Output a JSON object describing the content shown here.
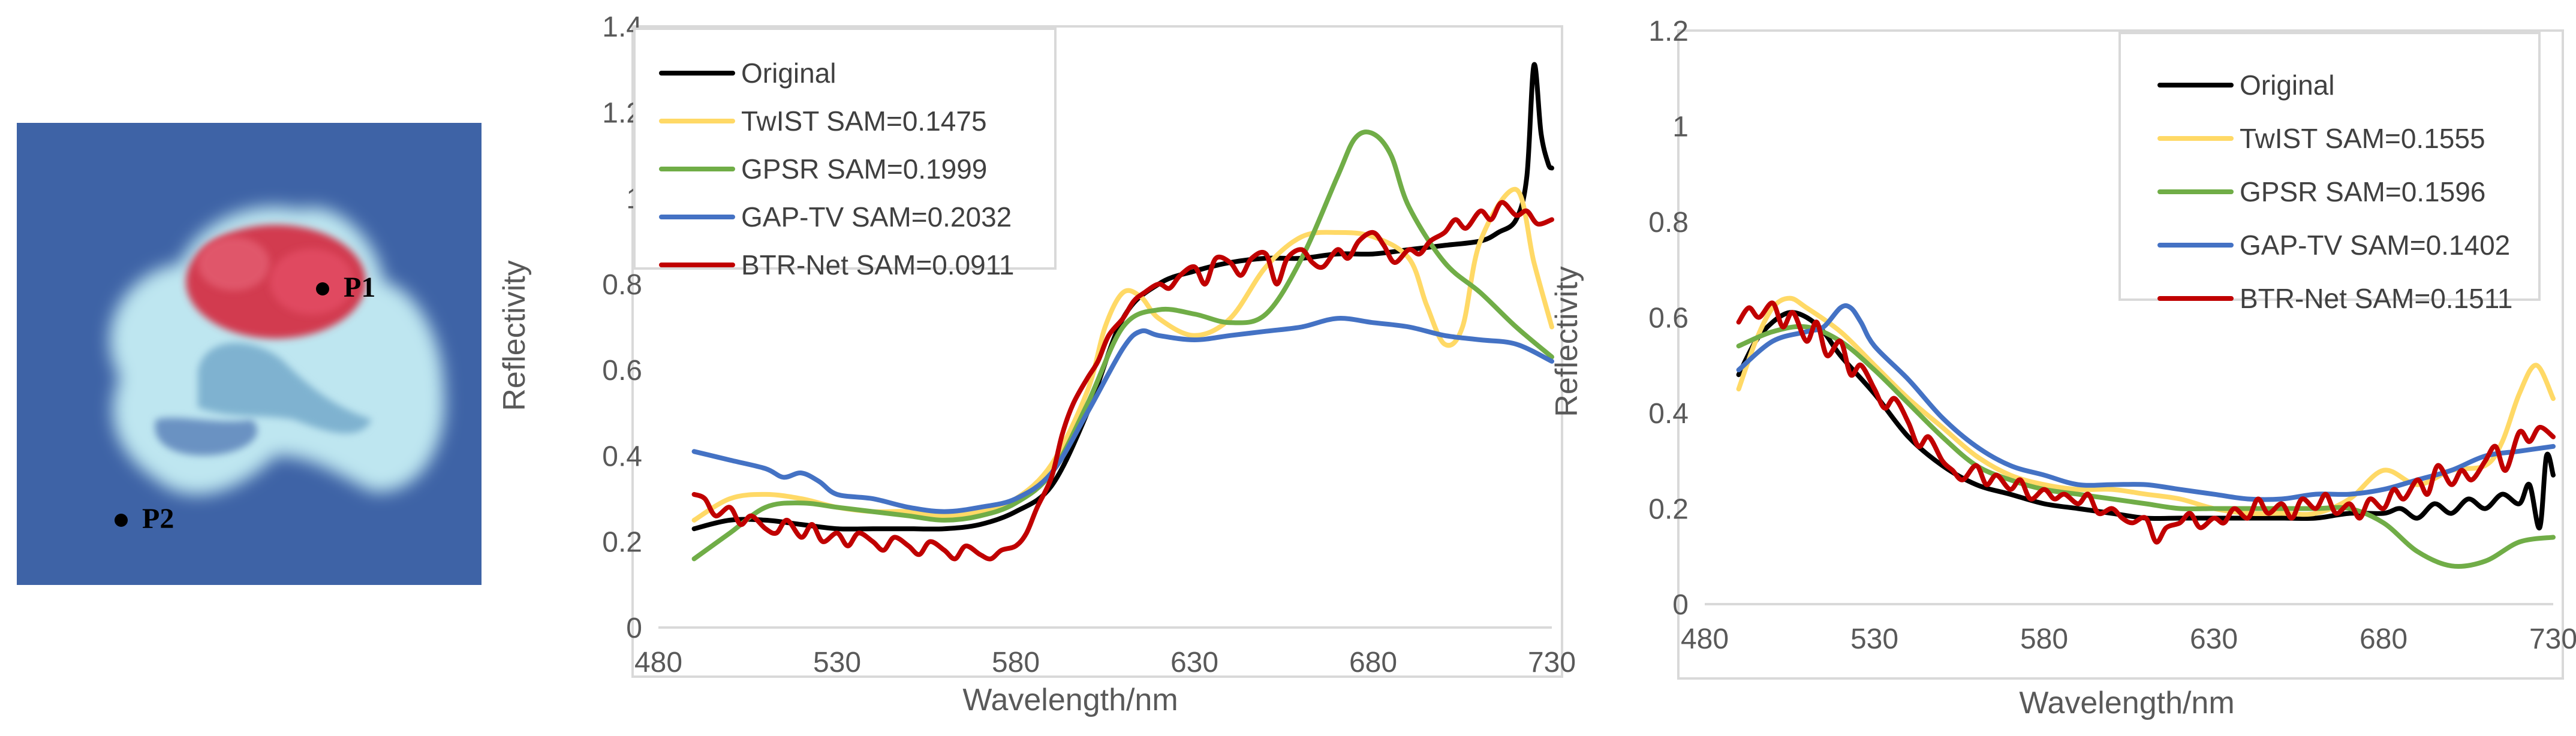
{
  "image_panel": {
    "markers": [
      {
        "label": "P1"
      },
      {
        "label": "P2"
      }
    ]
  },
  "chart_data": [
    {
      "type": "line",
      "title": "",
      "xlabel": "Wavelength/nm",
      "ylabel": "Reflectivity",
      "xlim": [
        480,
        730
      ],
      "ylim": [
        0,
        1.4
      ],
      "xticks": [
        480,
        530,
        580,
        630,
        680,
        730
      ],
      "yticks": [
        0,
        0.2,
        0.4,
        0.6,
        0.8,
        1,
        1.2,
        1.4
      ],
      "ytick_labels": [
        "0",
        "0.2",
        "0.4",
        "0.6",
        "0.8",
        "1",
        "1.2",
        "1.4"
      ],
      "grid": false,
      "legend_position": "top-left",
      "series": [
        {
          "name": "Original",
          "legend": "Original",
          "color": "#000000",
          "x": [
            490,
            500,
            510,
            520,
            530,
            540,
            550,
            560,
            570,
            580,
            590,
            600,
            610,
            620,
            630,
            640,
            650,
            660,
            670,
            680,
            690,
            700,
            710,
            715,
            720,
            723,
            725,
            727,
            729,
            730
          ],
          "y": [
            0.23,
            0.25,
            0.25,
            0.24,
            0.23,
            0.23,
            0.23,
            0.23,
            0.24,
            0.27,
            0.33,
            0.5,
            0.72,
            0.8,
            0.83,
            0.85,
            0.86,
            0.86,
            0.87,
            0.87,
            0.88,
            0.89,
            0.9,
            0.92,
            0.95,
            1.05,
            1.31,
            1.15,
            1.08,
            1.07
          ]
        },
        {
          "name": "TwIST",
          "legend": "TwIST SAM=0.1475",
          "color": "#FFD966",
          "x": [
            490,
            500,
            510,
            520,
            530,
            540,
            550,
            560,
            570,
            580,
            590,
            600,
            605,
            610,
            615,
            620,
            630,
            640,
            650,
            660,
            670,
            680,
            690,
            695,
            700,
            705,
            710,
            720,
            725,
            730
          ],
          "y": [
            0.25,
            0.3,
            0.31,
            0.3,
            0.28,
            0.27,
            0.27,
            0.26,
            0.27,
            0.3,
            0.38,
            0.55,
            0.7,
            0.78,
            0.77,
            0.72,
            0.68,
            0.72,
            0.84,
            0.91,
            0.92,
            0.91,
            0.86,
            0.75,
            0.66,
            0.7,
            0.9,
            1.02,
            0.85,
            0.7
          ]
        },
        {
          "name": "GPSR",
          "legend": "GPSR SAM=0.1999",
          "color": "#70AD47",
          "x": [
            490,
            500,
            510,
            520,
            530,
            540,
            550,
            560,
            570,
            580,
            590,
            600,
            610,
            620,
            630,
            640,
            650,
            660,
            670,
            675,
            680,
            685,
            690,
            700,
            710,
            720,
            730
          ],
          "y": [
            0.16,
            0.22,
            0.28,
            0.29,
            0.28,
            0.27,
            0.26,
            0.25,
            0.26,
            0.29,
            0.36,
            0.52,
            0.7,
            0.74,
            0.73,
            0.71,
            0.73,
            0.86,
            1.05,
            1.14,
            1.15,
            1.1,
            0.98,
            0.85,
            0.78,
            0.7,
            0.63
          ]
        },
        {
          "name": "GAP-TV",
          "legend": "GAP-TV SAM=0.2032",
          "color": "#4472C4",
          "x": [
            490,
            500,
            510,
            515,
            520,
            525,
            530,
            540,
            550,
            560,
            570,
            580,
            590,
            600,
            610,
            615,
            620,
            630,
            640,
            650,
            660,
            670,
            680,
            690,
            700,
            710,
            720,
            730
          ],
          "y": [
            0.41,
            0.39,
            0.37,
            0.35,
            0.36,
            0.34,
            0.31,
            0.3,
            0.28,
            0.27,
            0.28,
            0.3,
            0.36,
            0.5,
            0.65,
            0.69,
            0.68,
            0.67,
            0.68,
            0.69,
            0.7,
            0.72,
            0.71,
            0.7,
            0.68,
            0.67,
            0.66,
            0.62
          ]
        },
        {
          "name": "BTR-Net",
          "legend": "BTR-Net SAM=0.0911",
          "color": "#C00000",
          "x": [
            490,
            493,
            496,
            500,
            503,
            506,
            510,
            513,
            516,
            520,
            523,
            526,
            530,
            533,
            536,
            540,
            543,
            546,
            550,
            553,
            556,
            560,
            563,
            566,
            570,
            573,
            576,
            580,
            583,
            586,
            590,
            593,
            596,
            600,
            603,
            606,
            610,
            613,
            616,
            620,
            623,
            626,
            630,
            633,
            636,
            640,
            643,
            646,
            650,
            653,
            656,
            660,
            663,
            666,
            670,
            673,
            676,
            680,
            683,
            686,
            690,
            693,
            696,
            700,
            703,
            706,
            710,
            713,
            716,
            720,
            723,
            726,
            730
          ],
          "y": [
            0.31,
            0.3,
            0.26,
            0.28,
            0.24,
            0.26,
            0.23,
            0.22,
            0.25,
            0.21,
            0.24,
            0.2,
            0.22,
            0.19,
            0.22,
            0.2,
            0.18,
            0.21,
            0.19,
            0.17,
            0.2,
            0.18,
            0.16,
            0.19,
            0.17,
            0.16,
            0.18,
            0.19,
            0.22,
            0.28,
            0.35,
            0.45,
            0.52,
            0.58,
            0.62,
            0.68,
            0.72,
            0.76,
            0.78,
            0.8,
            0.79,
            0.82,
            0.84,
            0.8,
            0.86,
            0.85,
            0.82,
            0.86,
            0.87,
            0.8,
            0.86,
            0.88,
            0.85,
            0.84,
            0.88,
            0.86,
            0.9,
            0.92,
            0.89,
            0.85,
            0.88,
            0.87,
            0.9,
            0.92,
            0.95,
            0.93,
            0.97,
            0.95,
            0.99,
            0.96,
            0.97,
            0.94,
            0.95
          ]
        }
      ]
    },
    {
      "type": "line",
      "title": "",
      "xlabel": "Wavelength/nm",
      "ylabel": "Reflectivity",
      "xlim": [
        480,
        730
      ],
      "ylim": [
        0,
        1.2
      ],
      "xticks": [
        480,
        530,
        580,
        630,
        680,
        730
      ],
      "yticks": [
        0,
        0.2,
        0.4,
        0.6,
        0.8,
        1,
        1.2
      ],
      "ytick_labels": [
        "0",
        "0.2",
        "0.4",
        "0.6",
        "0.8",
        "1",
        "1.2"
      ],
      "grid": false,
      "legend_position": "top-right",
      "series": [
        {
          "name": "Original",
          "legend": "Original",
          "color": "#000000",
          "x": [
            490,
            495,
            500,
            505,
            510,
            515,
            520,
            530,
            540,
            550,
            560,
            570,
            580,
            590,
            600,
            610,
            620,
            630,
            640,
            650,
            660,
            670,
            680,
            685,
            690,
            695,
            700,
            705,
            710,
            715,
            720,
            723,
            726,
            728,
            730
          ],
          "y": [
            0.48,
            0.55,
            0.59,
            0.61,
            0.6,
            0.57,
            0.52,
            0.44,
            0.35,
            0.29,
            0.25,
            0.23,
            0.21,
            0.2,
            0.19,
            0.18,
            0.18,
            0.18,
            0.18,
            0.18,
            0.18,
            0.19,
            0.19,
            0.2,
            0.18,
            0.21,
            0.19,
            0.22,
            0.2,
            0.23,
            0.21,
            0.25,
            0.16,
            0.31,
            0.27
          ]
        },
        {
          "name": "TwIST",
          "legend": "TwIST SAM=0.1555",
          "color": "#FFD966",
          "x": [
            490,
            495,
            500,
            505,
            510,
            520,
            530,
            540,
            550,
            560,
            570,
            580,
            590,
            600,
            610,
            620,
            630,
            640,
            650,
            660,
            670,
            680,
            690,
            700,
            710,
            715,
            720,
            725,
            730
          ],
          "y": [
            0.45,
            0.55,
            0.62,
            0.64,
            0.62,
            0.57,
            0.5,
            0.43,
            0.37,
            0.31,
            0.27,
            0.25,
            0.24,
            0.24,
            0.23,
            0.22,
            0.2,
            0.19,
            0.19,
            0.19,
            0.22,
            0.28,
            0.25,
            0.28,
            0.29,
            0.34,
            0.44,
            0.5,
            0.43
          ]
        },
        {
          "name": "GPSR",
          "legend": "GPSR SAM=0.1596",
          "color": "#70AD47",
          "x": [
            490,
            500,
            510,
            520,
            530,
            540,
            550,
            560,
            570,
            580,
            590,
            600,
            610,
            620,
            630,
            640,
            650,
            660,
            670,
            680,
            690,
            700,
            710,
            720,
            730
          ],
          "y": [
            0.54,
            0.57,
            0.58,
            0.55,
            0.49,
            0.42,
            0.35,
            0.29,
            0.26,
            0.24,
            0.23,
            0.22,
            0.21,
            0.2,
            0.2,
            0.2,
            0.2,
            0.2,
            0.2,
            0.17,
            0.11,
            0.08,
            0.09,
            0.13,
            0.14
          ]
        },
        {
          "name": "GAP-TV",
          "legend": "GAP-TV SAM=0.1402",
          "color": "#4472C4",
          "x": [
            490,
            500,
            510,
            515,
            520,
            523,
            526,
            530,
            540,
            550,
            560,
            570,
            580,
            590,
            600,
            610,
            620,
            630,
            640,
            650,
            660,
            670,
            680,
            690,
            700,
            710,
            720,
            730
          ],
          "y": [
            0.49,
            0.55,
            0.57,
            0.58,
            0.62,
            0.62,
            0.59,
            0.54,
            0.47,
            0.39,
            0.33,
            0.29,
            0.27,
            0.25,
            0.25,
            0.25,
            0.24,
            0.23,
            0.22,
            0.22,
            0.23,
            0.23,
            0.24,
            0.26,
            0.28,
            0.31,
            0.32,
            0.33
          ]
        },
        {
          "name": "BTR-Net",
          "legend": "BTR-Net SAM=0.1511",
          "color": "#C00000",
          "x": [
            490,
            493,
            496,
            500,
            503,
            506,
            510,
            513,
            516,
            520,
            523,
            526,
            530,
            533,
            536,
            540,
            543,
            546,
            550,
            553,
            556,
            560,
            563,
            566,
            570,
            573,
            576,
            580,
            583,
            586,
            590,
            593,
            596,
            600,
            603,
            606,
            610,
            613,
            616,
            620,
            623,
            626,
            630,
            633,
            636,
            640,
            643,
            646,
            650,
            653,
            656,
            660,
            663,
            666,
            670,
            673,
            676,
            680,
            683,
            686,
            690,
            693,
            696,
            700,
            703,
            706,
            710,
            713,
            716,
            720,
            723,
            726,
            730
          ],
          "y": [
            0.59,
            0.62,
            0.6,
            0.63,
            0.58,
            0.61,
            0.55,
            0.59,
            0.52,
            0.55,
            0.48,
            0.5,
            0.45,
            0.41,
            0.43,
            0.38,
            0.33,
            0.35,
            0.3,
            0.28,
            0.26,
            0.29,
            0.25,
            0.27,
            0.24,
            0.26,
            0.22,
            0.24,
            0.22,
            0.23,
            0.21,
            0.23,
            0.19,
            0.2,
            0.18,
            0.17,
            0.18,
            0.13,
            0.16,
            0.17,
            0.19,
            0.16,
            0.18,
            0.17,
            0.2,
            0.18,
            0.22,
            0.19,
            0.21,
            0.18,
            0.22,
            0.2,
            0.23,
            0.19,
            0.21,
            0.18,
            0.22,
            0.2,
            0.24,
            0.22,
            0.26,
            0.23,
            0.29,
            0.25,
            0.28,
            0.26,
            0.3,
            0.33,
            0.28,
            0.36,
            0.34,
            0.37,
            0.35
          ]
        }
      ]
    }
  ]
}
